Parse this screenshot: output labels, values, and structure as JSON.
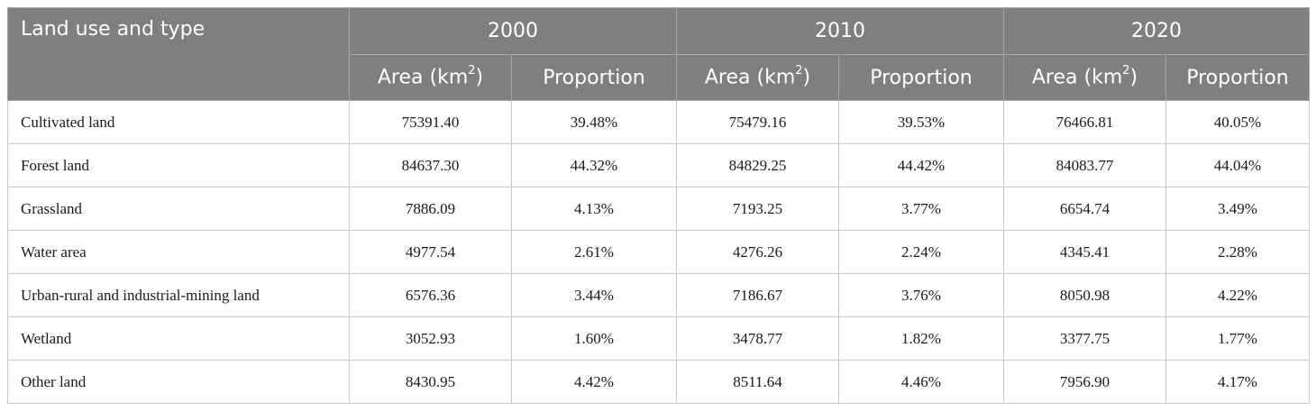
{
  "table": {
    "corner_header": "Land use and type",
    "years": [
      "2000",
      "2010",
      "2020"
    ],
    "area_label": "Area (km",
    "area_superscript": "2",
    "area_close": ")",
    "proportion_label": "Proportion",
    "rows": [
      {
        "label": "Cultivated land",
        "values": [
          "75391.40",
          "39.48%",
          "75479.16",
          "39.53%",
          "76466.81",
          "40.05%"
        ]
      },
      {
        "label": "Forest land",
        "values": [
          "84637.30",
          "44.32%",
          "84829.25",
          "44.42%",
          "84083.77",
          "44.04%"
        ]
      },
      {
        "label": "Grassland",
        "values": [
          "7886.09",
          "4.13%",
          "7193.25",
          "3.77%",
          "6654.74",
          "3.49%"
        ]
      },
      {
        "label": "Water area",
        "values": [
          "4977.54",
          "2.61%",
          "4276.26",
          "2.24%",
          "4345.41",
          "2.28%"
        ]
      },
      {
        "label": "Urban-rural and industrial-mining land",
        "values": [
          "6576.36",
          "3.44%",
          "7186.67",
          "3.76%",
          "8050.98",
          "4.22%"
        ]
      },
      {
        "label": "Wetland",
        "values": [
          "3052.93",
          "1.60%",
          "3478.77",
          "1.82%",
          "3377.75",
          "1.77%"
        ]
      },
      {
        "label": "Other land",
        "values": [
          "8430.95",
          "4.42%",
          "8511.64",
          "4.46%",
          "7956.90",
          "4.17%"
        ]
      }
    ]
  }
}
